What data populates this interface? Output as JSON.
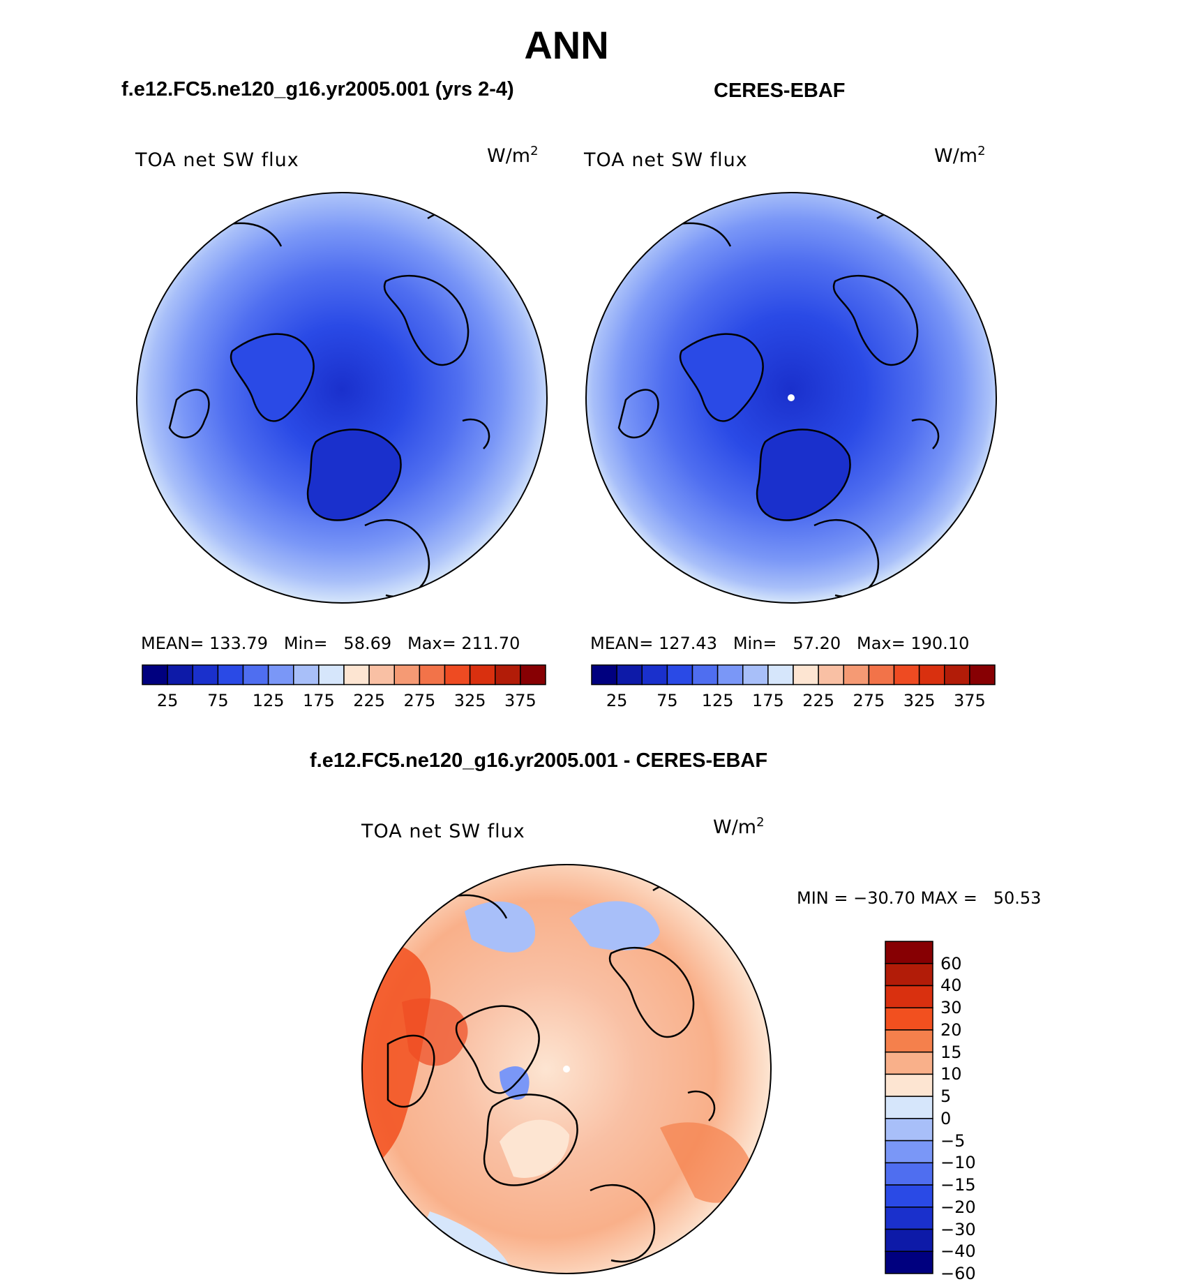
{
  "figure": {
    "season": "ANN",
    "variable": "TOA net SW flux",
    "units_base": "W/m",
    "units_exp": "2"
  },
  "panels": [
    {
      "case": "f.e12.FC5.ne120_g16.yr2005.001 (yrs 2-4)",
      "stats": "MEAN= 133.79   Min=   58.69   Max= 211.70"
    },
    {
      "case": "CERES-EBAF",
      "stats": "MEAN= 127.43   Min=   57.20   Max= 190.10"
    }
  ],
  "abs_colorbar": {
    "colors": [
      "#00007f",
      "#0d1aa8",
      "#1a30cc",
      "#2a4ae6",
      "#4f6ef0",
      "#7a97f7",
      "#a8bff9",
      "#d6e6fb",
      "#fde5d2",
      "#f9c0a4",
      "#f59a74",
      "#f27349",
      "#ee4b22",
      "#d9300f",
      "#b21c08",
      "#870003"
    ],
    "labels": [
      "25",
      "75",
      "125",
      "175",
      "225",
      "275",
      "325",
      "375"
    ]
  },
  "diff": {
    "title": "f.e12.FC5.ne120_g16.yr2005.001 - CERES-EBAF",
    "minmax": "MIN = −30.70 MAX =   50.53",
    "colorbar": {
      "colors": [
        "#870003",
        "#b21c08",
        "#d9300f",
        "#f2501f",
        "#f5804c",
        "#f9b08a",
        "#fde5d2",
        "#d6e6fb",
        "#a8bff9",
        "#7a97f7",
        "#4f6ef0",
        "#2a4ae6",
        "#1a30cc",
        "#0d1aa8",
        "#00007f"
      ],
      "labels": [
        "60",
        "40",
        "30",
        "20",
        "15",
        "10",
        "5",
        "0",
        "−5",
        "−10",
        "−15",
        "−20",
        "−30",
        "−40",
        "−60"
      ]
    }
  }
}
